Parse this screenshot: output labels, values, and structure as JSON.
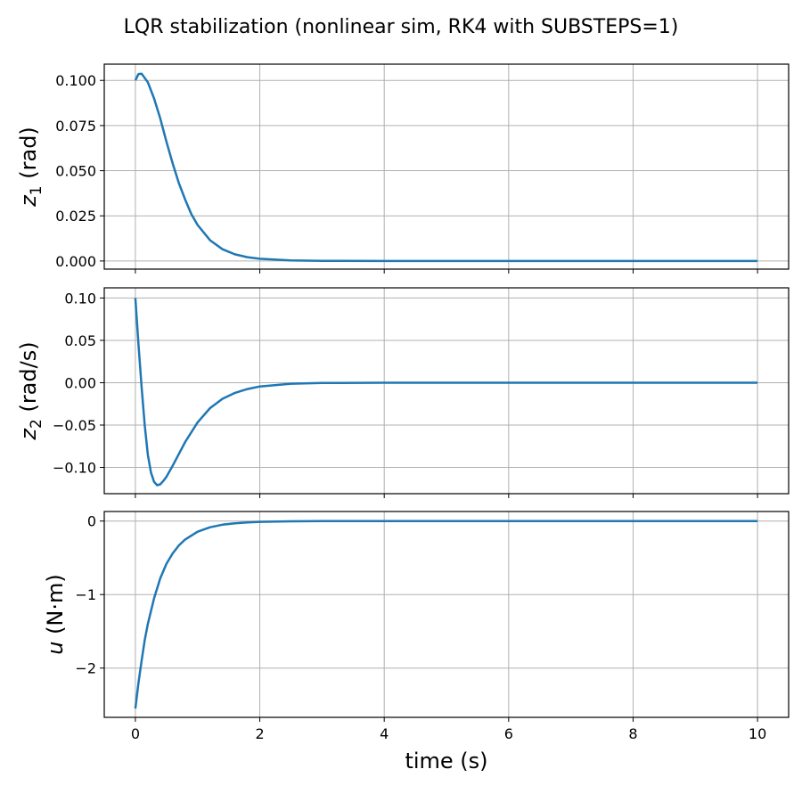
{
  "title": "LQR stabilization (nonlinear sim, RK4 with SUBSTEPS=1)",
  "xlabel": "time (s)",
  "colors": {
    "line": "#1f77b4",
    "grid": "#b0b0b0",
    "axes": "#000000"
  },
  "chart_data": [
    {
      "type": "line",
      "title": "LQR stabilization (nonlinear sim, RK4 with SUBSTEPS=1)",
      "ylabel_var": "z",
      "ylabel_sub": "1",
      "ylabel_unit": "(rad)",
      "xlabel": "",
      "xlim": [
        -0.5,
        10.5
      ],
      "ylim": [
        -0.0045,
        0.109
      ],
      "xticks": [
        0,
        2,
        4,
        6,
        8,
        10
      ],
      "yticks": [
        "0.000",
        "0.025",
        "0.050",
        "0.075",
        "0.100"
      ],
      "ytick_values": [
        0,
        0.025,
        0.05,
        0.075,
        0.1
      ],
      "grid": true,
      "series": [
        {
          "name": "z1",
          "x": [
            0,
            0.05,
            0.1,
            0.2,
            0.3,
            0.4,
            0.5,
            0.6,
            0.7,
            0.8,
            0.9,
            1.0,
            1.2,
            1.4,
            1.6,
            1.8,
            2.0,
            2.5,
            3.0,
            4.0,
            10.0
          ],
          "values": [
            0.1,
            0.1035,
            0.1037,
            0.099,
            0.09,
            0.079,
            0.066,
            0.054,
            0.043,
            0.034,
            0.026,
            0.02,
            0.0115,
            0.0065,
            0.0037,
            0.0021,
            0.0012,
            0.0003,
            0.0001,
            0.0,
            0.0
          ]
        }
      ]
    },
    {
      "type": "line",
      "ylabel_var": "z",
      "ylabel_sub": "2",
      "ylabel_unit": "(rad/s)",
      "xlim": [
        -0.5,
        10.5
      ],
      "ylim": [
        -0.131,
        0.112
      ],
      "xticks": [
        0,
        2,
        4,
        6,
        8,
        10
      ],
      "yticks": [
        "0.10",
        "0.05",
        "0.00",
        "−0.05",
        "−0.10"
      ],
      "ytick_values": [
        0.1,
        0.05,
        0,
        -0.05,
        -0.1
      ],
      "grid": true,
      "series": [
        {
          "name": "z2",
          "x": [
            0,
            0.05,
            0.1,
            0.15,
            0.2,
            0.25,
            0.3,
            0.35,
            0.4,
            0.45,
            0.5,
            0.6,
            0.7,
            0.8,
            1.0,
            1.2,
            1.4,
            1.6,
            1.8,
            2.0,
            2.5,
            3.0,
            4.0,
            10.0
          ],
          "values": [
            0.1,
            0.045,
            -0.005,
            -0.05,
            -0.085,
            -0.106,
            -0.117,
            -0.121,
            -0.12,
            -0.116,
            -0.111,
            -0.098,
            -0.084,
            -0.07,
            -0.047,
            -0.03,
            -0.019,
            -0.012,
            -0.0075,
            -0.0045,
            -0.0012,
            -0.0003,
            0.0,
            0.0
          ]
        }
      ]
    },
    {
      "type": "line",
      "ylabel_var": "u",
      "ylabel_sub": "",
      "ylabel_unit": "(N·m)",
      "xlabel": "time (s)",
      "xlim": [
        -0.5,
        10.5
      ],
      "ylim": [
        -2.67,
        0.13
      ],
      "xticks": [
        0,
        2,
        4,
        6,
        8,
        10
      ],
      "yticks": [
        "0",
        "−1",
        "−2"
      ],
      "ytick_values": [
        0,
        -1,
        -2
      ],
      "grid": true,
      "series": [
        {
          "name": "u",
          "x": [
            0,
            0.05,
            0.1,
            0.15,
            0.2,
            0.3,
            0.4,
            0.5,
            0.6,
            0.7,
            0.8,
            1.0,
            1.2,
            1.4,
            1.6,
            1.8,
            2.0,
            2.5,
            3.0,
            4.0,
            10.0
          ],
          "values": [
            -2.55,
            -2.2,
            -1.9,
            -1.62,
            -1.4,
            -1.05,
            -0.78,
            -0.58,
            -0.44,
            -0.33,
            -0.25,
            -0.145,
            -0.085,
            -0.05,
            -0.03,
            -0.018,
            -0.011,
            -0.003,
            -0.001,
            0.0,
            0.0
          ]
        }
      ]
    }
  ]
}
